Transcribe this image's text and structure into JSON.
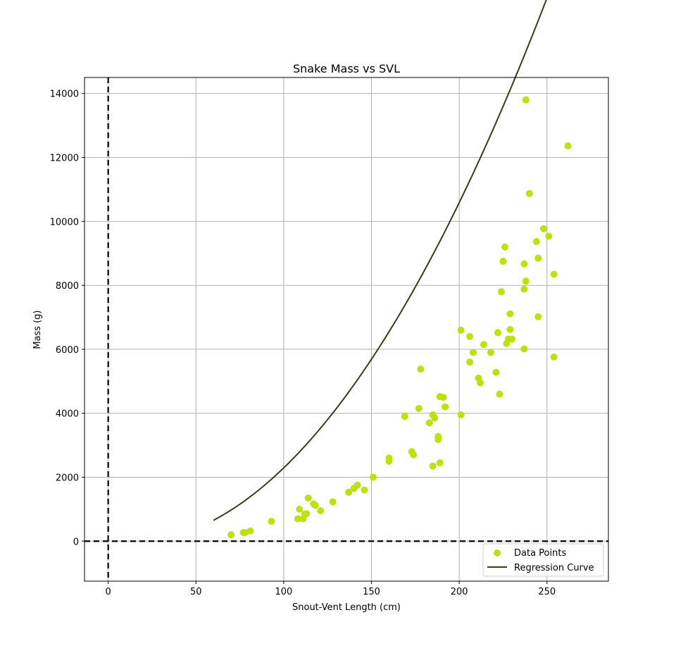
{
  "chart_data": {
    "type": "scatter",
    "title": "Snake Mass vs SVL",
    "xlabel": "Snout-Vent Length (cm)",
    "ylabel": "Mass (g)",
    "xlim": [
      -13.5,
      285
    ],
    "ylim": [
      -1250,
      14500
    ],
    "xticks": [
      0,
      50,
      100,
      150,
      200,
      250
    ],
    "yticks": [
      0,
      2000,
      4000,
      6000,
      8000,
      10000,
      12000,
      14000
    ],
    "grid": true,
    "legend_position": "lower right",
    "reference_lines": {
      "x": 0,
      "y": 0,
      "style": "dashed",
      "color": "#000000"
    },
    "series": [
      {
        "name": "Data Points",
        "kind": "scatter",
        "color": "#bde00e",
        "points": [
          [
            70,
            200
          ],
          [
            77,
            270
          ],
          [
            78,
            270
          ],
          [
            81,
            320
          ],
          [
            93,
            620
          ],
          [
            108,
            700
          ],
          [
            109,
            1000
          ],
          [
            111,
            700
          ],
          [
            112,
            850
          ],
          [
            113,
            860
          ],
          [
            114,
            1350
          ],
          [
            117,
            1170
          ],
          [
            118,
            1120
          ],
          [
            121,
            950
          ],
          [
            128,
            1230
          ],
          [
            137,
            1530
          ],
          [
            140,
            1650
          ],
          [
            142,
            1750
          ],
          [
            146,
            1600
          ],
          [
            151,
            2000
          ],
          [
            160,
            2500
          ],
          [
            160,
            2600
          ],
          [
            169,
            3900
          ],
          [
            173,
            2800
          ],
          [
            174,
            2700
          ],
          [
            177,
            4150
          ],
          [
            178,
            5380
          ],
          [
            183,
            3700
          ],
          [
            185,
            2350
          ],
          [
            185,
            3950
          ],
          [
            186,
            3850
          ],
          [
            188,
            3180
          ],
          [
            188,
            3270
          ],
          [
            189,
            2450
          ],
          [
            189,
            4520
          ],
          [
            191,
            4500
          ],
          [
            192,
            4200
          ],
          [
            201,
            3950
          ],
          [
            201,
            6600
          ],
          [
            206,
            6400
          ],
          [
            206,
            5600
          ],
          [
            208,
            5900
          ],
          [
            211,
            5100
          ],
          [
            212,
            4950
          ],
          [
            214,
            6150
          ],
          [
            218,
            5900
          ],
          [
            221,
            5280
          ],
          [
            222,
            6520
          ],
          [
            223,
            4600
          ],
          [
            224,
            7800
          ],
          [
            225,
            8750
          ],
          [
            226,
            9200
          ],
          [
            227,
            6180
          ],
          [
            228,
            6320
          ],
          [
            229,
            7110
          ],
          [
            229,
            6620
          ],
          [
            230,
            6320
          ],
          [
            237,
            6010
          ],
          [
            237,
            7880
          ],
          [
            237,
            8670
          ],
          [
            238,
            8130
          ],
          [
            238,
            13800
          ],
          [
            240,
            10870
          ],
          [
            244,
            9370
          ],
          [
            245,
            7020
          ],
          [
            245,
            8850
          ],
          [
            248,
            9770
          ],
          [
            251,
            9540
          ],
          [
            254,
            8350
          ],
          [
            254,
            5760
          ],
          [
            262,
            12360
          ]
        ]
      },
      {
        "name": "Regression Curve",
        "kind": "line",
        "color": "#3b3a1c",
        "x_range": [
          60,
          272
        ],
        "quadratic": [
          0.3,
          -7.05,
          -3.7
        ]
      }
    ]
  }
}
